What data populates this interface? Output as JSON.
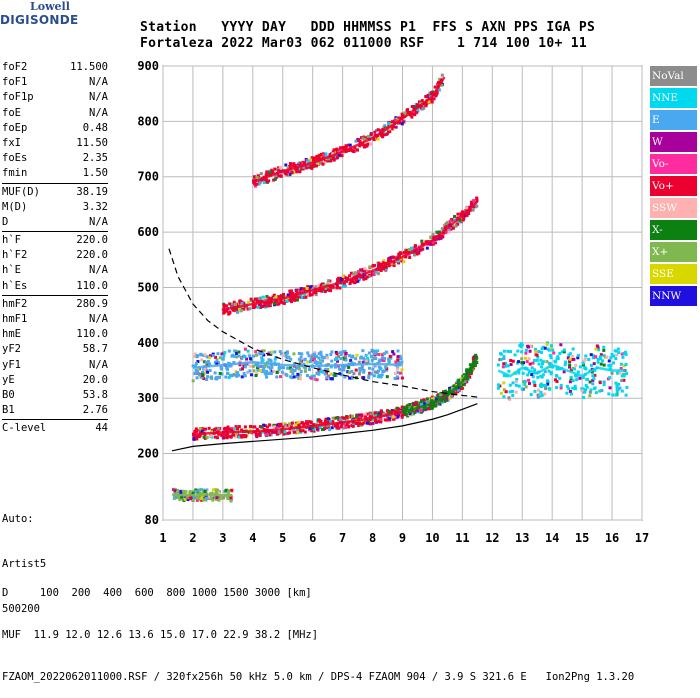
{
  "logo": {
    "line1": "Lowell",
    "line2": "DIGISONDE"
  },
  "header": {
    "line1": "Station   YYYY DAY   DDD HHMMSS P1  FFS S AXN PPS IGA PS",
    "line2": "Fortaleza 2022 Mar03 062 011000 RSF    1 714 100 10+ 11"
  },
  "params": [
    [
      {
        "label": "foF2",
        "value": "11.500"
      },
      {
        "label": "foF1",
        "value": "N/A"
      },
      {
        "label": "foF1p",
        "value": "N/A"
      },
      {
        "label": "foE",
        "value": "N/A"
      },
      {
        "label": "foEp",
        "value": "0.48"
      },
      {
        "label": "fxI",
        "value": "11.50"
      },
      {
        "label": "foEs",
        "value": "2.35"
      },
      {
        "label": "fmin",
        "value": "1.50"
      }
    ],
    [
      {
        "label": "MUF(D)",
        "value": "38.19"
      },
      {
        "label": "M(D)",
        "value": "3.32"
      },
      {
        "label": "D",
        "value": "N/A"
      }
    ],
    [
      {
        "label": "h`F",
        "value": "220.0"
      },
      {
        "label": "h`F2",
        "value": "220.0"
      },
      {
        "label": "h`E",
        "value": "N/A"
      },
      {
        "label": "h`Es",
        "value": "110.0"
      }
    ],
    [
      {
        "label": "hmF2",
        "value": "280.9"
      },
      {
        "label": "hmF1",
        "value": "N/A"
      },
      {
        "label": "hmE",
        "value": "110.0"
      },
      {
        "label": "yF2",
        "value": "58.7"
      },
      {
        "label": "yF1",
        "value": "N/A"
      },
      {
        "label": "yE",
        "value": "20.0"
      },
      {
        "label": "B0",
        "value": "53.8"
      },
      {
        "label": "B1",
        "value": "2.76"
      }
    ],
    [
      {
        "label": "C-level",
        "value": "44"
      }
    ]
  ],
  "auto": {
    "line1": "Auto:",
    "line2": "Artist5",
    "line3": "500200"
  },
  "legend": [
    {
      "label": "NoVal",
      "color": "#8c8c8c"
    },
    {
      "label": "NNE",
      "color": "#00d8f0"
    },
    {
      "label": "E",
      "color": "#4aa8f0"
    },
    {
      "label": "W",
      "color": "#a8009c"
    },
    {
      "label": "Vo-",
      "color": "#ff2ca0"
    },
    {
      "label": "Vo+",
      "color": "#ec0030"
    },
    {
      "label": "SSW",
      "color": "#ffb0b0"
    },
    {
      "label": "X-",
      "color": "#0c8010"
    },
    {
      "label": "X+",
      "color": "#80b850"
    },
    {
      "label": "SSE",
      "color": "#d8d800"
    },
    {
      "label": "NNW",
      "color": "#2010e0"
    }
  ],
  "footer": {
    "line1": "D     100  200  400  600  800 1000 1500 3000 [km]",
    "line2": "MUF  11.9 12.0 12.6 13.6 15.0 17.0 22.9 38.2 [MHz]",
    "line3": "FZAOM_2022062011000.RSF / 320fx256h 50 kHz 5.0 km / DPS-4 FZAOM 904 / 3.9 S 321.6 E   Ion2Png 1.3.20"
  },
  "chart_data": {
    "type": "scatter",
    "title": "",
    "xlabel": "",
    "ylabel": "",
    "xlim": [
      1,
      17
    ],
    "ylim": [
      80,
      900
    ],
    "x_ticks": [
      1,
      2,
      3,
      4,
      5,
      6,
      7,
      8,
      9,
      10,
      11,
      12,
      13,
      14,
      15,
      16,
      17
    ],
    "y_ticks": [
      80,
      200,
      300,
      400,
      500,
      600,
      700,
      800,
      900
    ],
    "grid": true,
    "traces": [
      {
        "name": "o-trace F2 1st hop",
        "color": "#ec0030",
        "x": [
          2.0,
          3.0,
          4.0,
          5.0,
          6.0,
          7.0,
          8.0,
          9.0,
          10.0,
          10.5,
          11.0,
          11.4
        ],
        "y": [
          235,
          238,
          240,
          244,
          250,
          256,
          264,
          275,
          292,
          305,
          325,
          355
        ]
      },
      {
        "name": "x-trace F2",
        "color": "#0c8010",
        "x": [
          9.0,
          10.0,
          10.5,
          11.0,
          11.5
        ],
        "y": [
          275,
          290,
          305,
          330,
          375
        ]
      },
      {
        "name": "F2 2nd hop",
        "color": "#ec0030",
        "x": [
          3.0,
          4.0,
          5.0,
          6.0,
          7.0,
          8.0,
          9.0,
          10.0,
          11.0,
          11.5
        ],
        "y": [
          460,
          470,
          480,
          495,
          510,
          530,
          555,
          585,
          630,
          655
        ]
      },
      {
        "name": "F2 3rd hop",
        "color": "#ec0030",
        "x": [
          4.0,
          5.0,
          6.0,
          7.0,
          8.0,
          9.0,
          10.0,
          10.4
        ],
        "y": [
          690,
          710,
          725,
          745,
          770,
          805,
          845,
          880
        ]
      },
      {
        "name": "Es",
        "color": "#80b850",
        "x": [
          1.3,
          1.7,
          2.1,
          2.5,
          2.9,
          3.3
        ],
        "y": [
          126,
          125,
          125,
          126,
          125,
          124
        ]
      },
      {
        "name": "diffuse E-echo",
        "color": "#4aa8f0",
        "x": [
          2.0,
          3.0,
          4.0,
          5.0,
          6.0,
          7.0,
          8.0,
          9.0
        ],
        "y": [
          355,
          360,
          365,
          360,
          358,
          360,
          362,
          360
        ]
      },
      {
        "name": "spread F",
        "color": "#00d8f0",
        "x": [
          12.2,
          12.6,
          13.0,
          13.5,
          14.0,
          14.5,
          15.0,
          15.5,
          16.0,
          16.5
        ],
        "y": [
          350,
          340,
          355,
          345,
          360,
          350,
          340,
          355,
          350,
          350
        ]
      }
    ],
    "profile": {
      "x": [
        1.3,
        2.0,
        3.0,
        4.0,
        5.0,
        6.0,
        7.0,
        8.0,
        9.0,
        10.0,
        10.5,
        11.0,
        11.5
      ],
      "y": [
        205,
        213,
        218,
        222,
        226,
        230,
        236,
        242,
        250,
        262,
        270,
        280,
        290
      ]
    },
    "muf_curve": {
      "x": [
        1.2,
        1.5,
        2.0,
        2.5,
        3.0,
        3.5,
        4.0,
        5.0,
        6.0,
        7.0,
        8.0,
        9.0,
        10.0,
        11.0,
        11.5
      ],
      "y": [
        570,
        520,
        470,
        440,
        420,
        405,
        390,
        370,
        355,
        342,
        330,
        322,
        312,
        305,
        302
      ]
    }
  }
}
